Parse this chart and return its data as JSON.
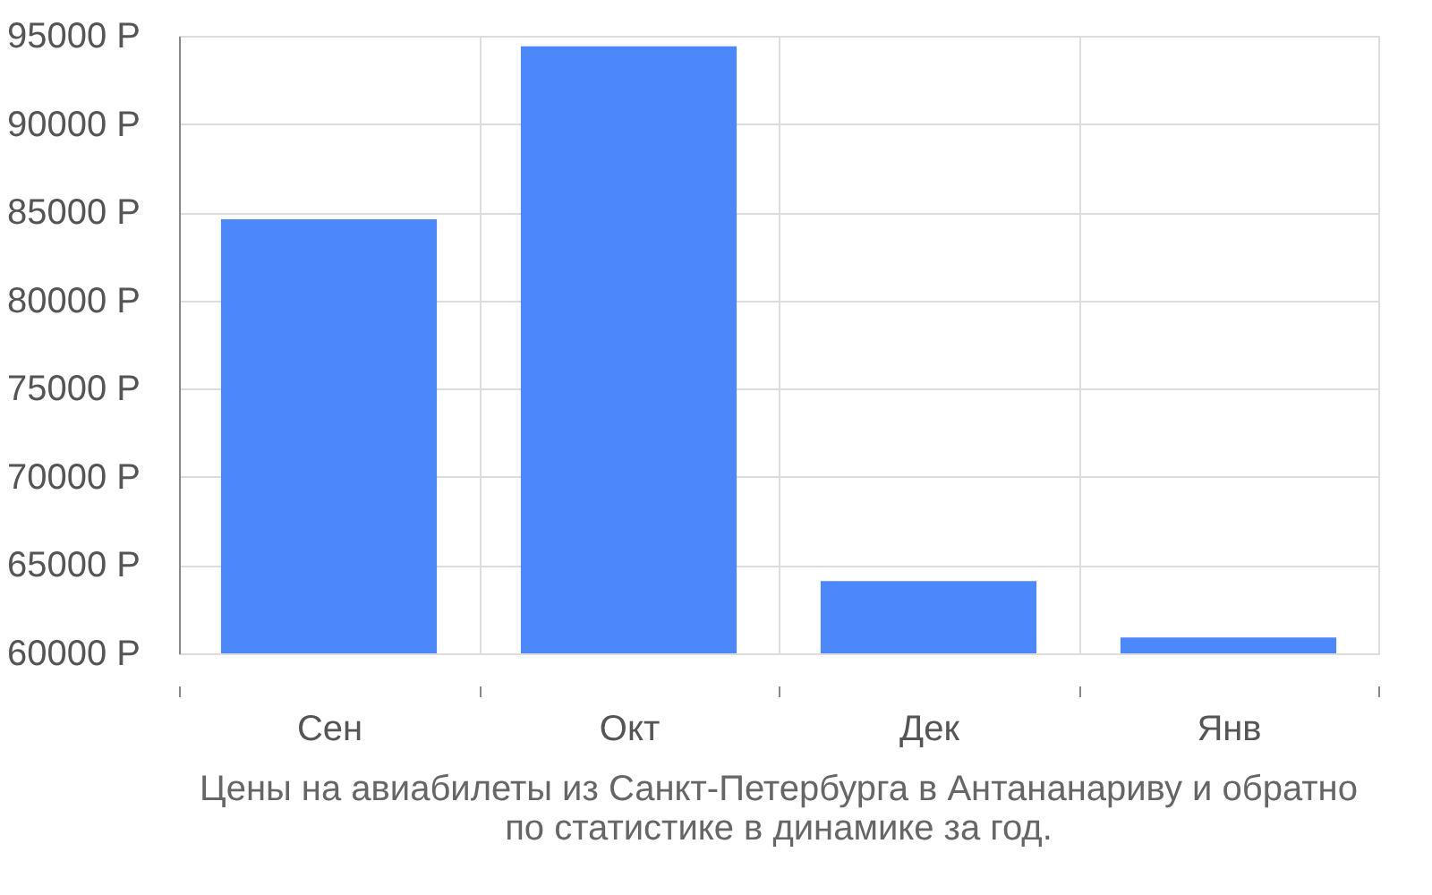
{
  "chart_data": {
    "type": "bar",
    "title": [
      "Цены на авиабилеты из Санкт-Петербурга в Антананариву и обратно",
      "по статистике в динамике за год."
    ],
    "categories": [
      "Сен",
      "Окт",
      "Дек",
      "Янв"
    ],
    "values": [
      84600,
      94400,
      64100,
      60900
    ],
    "color": "#4d88fb",
    "ylim": [
      60000,
      95000
    ],
    "yticks": [
      {
        "value": 60000,
        "label": "60000 Р"
      },
      {
        "value": 65000,
        "label": "65000 Р"
      },
      {
        "value": 70000,
        "label": "70000 Р"
      },
      {
        "value": 75000,
        "label": "75000 Р"
      },
      {
        "value": 80000,
        "label": "80000 Р"
      },
      {
        "value": 85000,
        "label": "85000 Р"
      },
      {
        "value": 90000,
        "label": "90000 Р"
      },
      {
        "value": 95000,
        "label": "95000 Р"
      }
    ],
    "grid": true
  }
}
